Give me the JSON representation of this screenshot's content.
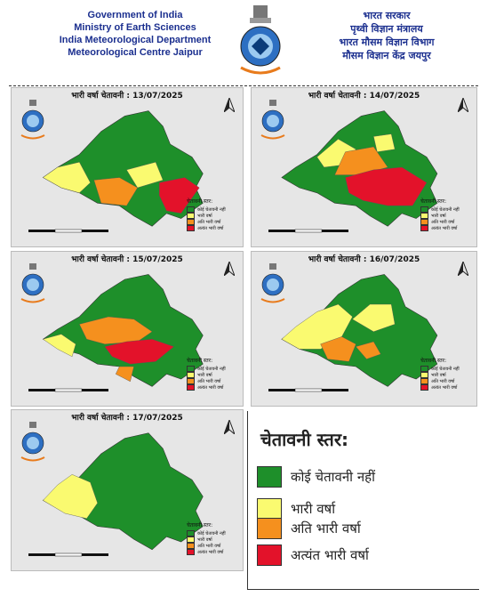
{
  "header": {
    "english": [
      "Government of India",
      "Ministry of Earth Sciences",
      "India Meteorological Department",
      "Meteorological Centre Jaipur"
    ],
    "hindi": [
      "भारत सरकार",
      "पृथ्वी विज्ञान मंत्रालय",
      "भारत मौसम विज्ञान विभाग",
      "मौसम विज्ञान केंद्र जयपुर"
    ]
  },
  "panels": [
    {
      "title": "भारी वर्षा चेतावनी : 13/07/2025"
    },
    {
      "title": "भारी वर्षा चेतावनी : 14/07/2025"
    },
    {
      "title": "भारी वर्षा चेतावनी : 15/07/2025"
    },
    {
      "title": "भारी वर्षा चेतावनी : 16/07/2025"
    },
    {
      "title": "भारी वर्षा चेतावनी : 17/07/2025"
    }
  ],
  "mini_legend": {
    "heading": "चेतावनी स्तर:",
    "items": [
      "कोई चेतावनी नहीं",
      "भारी वर्षा",
      "अति भारी वर्षा",
      "अत्यंत भारी वर्षा"
    ]
  },
  "legend": {
    "title": "चेतावनी स्तर:",
    "items": [
      {
        "label": "कोई चेतावनी नहीं",
        "color": "#1e8f2a"
      },
      {
        "label": "भारी वर्षा",
        "color": "#fafa70"
      },
      {
        "label": "अति भारी वर्षा",
        "color": "#f5901e"
      },
      {
        "label": "अत्यंत भारी वर्षा",
        "color": "#e3122a"
      }
    ]
  },
  "colors": {
    "green": "#1e8f2a",
    "yellow": "#fafa70",
    "orange": "#f5901e",
    "red": "#e3122a"
  }
}
